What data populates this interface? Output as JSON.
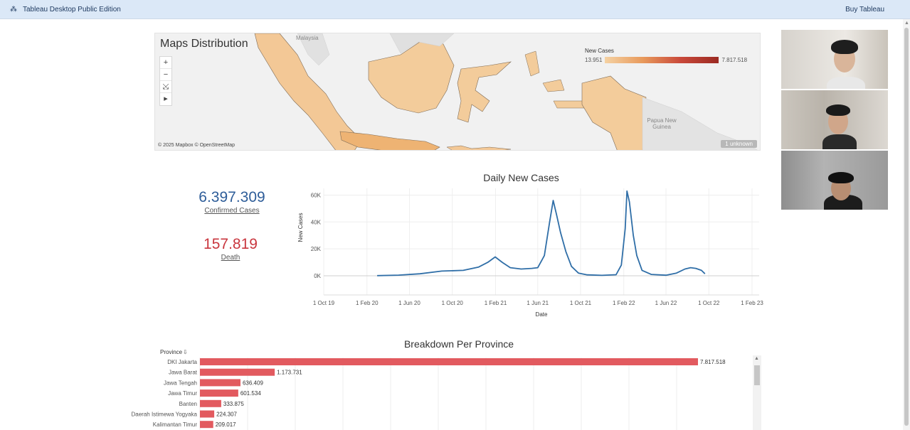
{
  "app": {
    "title": "Tableau Desktop Public Edition",
    "buy_label": "Buy Tableau",
    "logo_icon": "tableau-logo-icon"
  },
  "map": {
    "title": "Maps Distribution",
    "tools": [
      "+",
      "−",
      "⤩",
      "▸"
    ],
    "legend_title": "New Cases",
    "legend_min": "13.951",
    "legend_max": "7.817.518",
    "attribution": "© 2025 Mapbox © OpenStreetMap",
    "unknown_badge": "1 unknown",
    "labels": {
      "malaysia": "Malaysia",
      "png": "Papua New Guinea"
    },
    "colors": {
      "low": "#f5d2a3",
      "high": "#9b2a22"
    }
  },
  "kpis": {
    "confirmed": {
      "value": "6.397.309",
      "label": "Confirmed Cases",
      "color": "#2e5d99"
    },
    "death": {
      "value": "157.819",
      "label": "Death",
      "color": "#c9363e"
    }
  },
  "chart_data": [
    {
      "type": "line",
      "title": "Daily New Cases",
      "xlabel": "Date",
      "ylabel": "New Cases",
      "x_ticks": [
        "1 Oct 19",
        "1 Feb 20",
        "1 Jun 20",
        "1 Oct 20",
        "1 Feb 21",
        "1 Jun 21",
        "1 Oct 21",
        "1 Feb 22",
        "1 Jun 22",
        "1 Oct 22",
        "1 Feb 23"
      ],
      "y_ticks": [
        "0K",
        "20K",
        "40K",
        "60K"
      ],
      "ylim": [
        0,
        65000
      ],
      "grid": true,
      "series": [
        {
          "color": "#2f6ea7",
          "x": [
            "2020-03-01",
            "2020-05-01",
            "2020-07-01",
            "2020-09-01",
            "2020-11-01",
            "2020-12-15",
            "2021-01-10",
            "2021-01-31",
            "2021-02-20",
            "2021-03-15",
            "2021-04-15",
            "2021-05-15",
            "2021-06-01",
            "2021-06-20",
            "2021-07-05",
            "2021-07-15",
            "2021-07-25",
            "2021-08-05",
            "2021-08-20",
            "2021-09-05",
            "2021-09-25",
            "2021-10-20",
            "2021-12-01",
            "2022-01-10",
            "2022-01-25",
            "2022-02-05",
            "2022-02-10",
            "2022-02-17",
            "2022-02-28",
            "2022-03-10",
            "2022-03-25",
            "2022-04-20",
            "2022-06-01",
            "2022-07-01",
            "2022-07-25",
            "2022-08-10",
            "2022-08-25",
            "2022-09-10",
            "2022-09-20"
          ],
          "y": [
            100,
            500,
            1500,
            3500,
            4000,
            6500,
            10000,
            14000,
            10000,
            6000,
            5000,
            5500,
            6000,
            15000,
            40000,
            56000,
            45000,
            32000,
            18000,
            7000,
            2000,
            700,
            300,
            800,
            8000,
            35000,
            63000,
            55000,
            30000,
            15000,
            4000,
            1000,
            400,
            2000,
            5000,
            6000,
            5500,
            4000,
            1500
          ]
        }
      ]
    },
    {
      "type": "bar",
      "title": "Breakdown Per Province",
      "ylabel": "Province",
      "color": "#e25a5f",
      "categories": [
        "DKI Jakarta",
        "Jawa Barat",
        "Jawa Tengah",
        "Jawa Timur",
        "Banten",
        "Daerah Istimewa Yogyaka",
        "Kalimantan Timur"
      ],
      "values": [
        7817518,
        1173731,
        636409,
        601534,
        333875,
        224307,
        209017
      ],
      "value_labels": [
        "7.817.518",
        "1.173.731",
        "636.409",
        "601.534",
        "333.875",
        "224.307",
        "209.017"
      ]
    }
  ]
}
